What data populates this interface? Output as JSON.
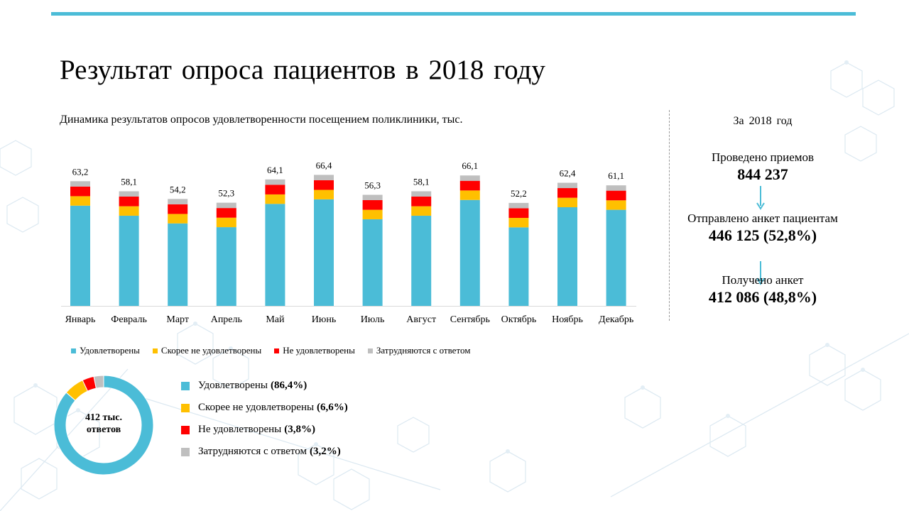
{
  "title": "Результат опроса пациентов в 2018 году",
  "colors": {
    "accent": "#4bbcd7",
    "satisfied": "#4bbcd7",
    "rather_not": "#ffc000",
    "not_satisfied": "#ff0000",
    "hard_to_say": "#bfbfbf"
  },
  "chart_data": [
    {
      "type": "bar",
      "stacked": true,
      "title": "Динамика результатов опросов удовлетворенности посещением поликлиники, тыс.",
      "categories": [
        "Январь",
        "Февраль",
        "Март",
        "Апрель",
        "Май",
        "Июнь",
        "Июль",
        "Август",
        "Сентябрь",
        "Октябрь",
        "Ноябрь",
        "Декабрь"
      ],
      "totals": [
        "63,2",
        "58,1",
        "54,2",
        "52,3",
        "64,1",
        "66,4",
        "56,3",
        "58,1",
        "66,1",
        "52,2",
        "62,4",
        "61,1"
      ],
      "series": [
        {
          "name": "Удовлетворены",
          "color": "#4bbcd7",
          "values": [
            50.8,
            45.7,
            41.8,
            39.9,
            51.7,
            54.0,
            43.9,
            45.7,
            53.7,
            39.8,
            50.0,
            48.7
          ]
        },
        {
          "name": "Скорее не удовлетворены",
          "color": "#ffc000",
          "values": [
            4.8,
            4.8,
            4.8,
            4.8,
            4.8,
            4.8,
            4.8,
            4.8,
            4.8,
            4.8,
            4.8,
            4.8
          ]
        },
        {
          "name": "Не удовлетворены",
          "color": "#ff0000",
          "values": [
            4.9,
            4.9,
            4.9,
            4.9,
            4.9,
            4.9,
            4.9,
            4.9,
            4.9,
            4.9,
            4.9,
            4.9
          ]
        },
        {
          "name": "Затрудняются с ответом",
          "color": "#bfbfbf",
          "values": [
            2.7,
            2.7,
            2.7,
            2.7,
            2.7,
            2.7,
            2.7,
            2.7,
            2.7,
            2.7,
            2.7,
            2.7
          ]
        }
      ],
      "ylim": [
        0,
        70
      ],
      "grid": false,
      "legend": "bottom"
    },
    {
      "type": "pie",
      "variant": "donut",
      "center_label": [
        "412 тыс.",
        "ответов"
      ],
      "slices": [
        {
          "name": "Удовлетворены",
          "percent_label": "(86,4%)",
          "value": 86.4,
          "color": "#4bbcd7"
        },
        {
          "name": "Скорее не удовлетворены",
          "percent_label": "(6,6%)",
          "value": 6.6,
          "color": "#ffc000"
        },
        {
          "name": "Не удовлетворены",
          "percent_label": "(3,8%)",
          "value": 3.8,
          "color": "#ff0000"
        },
        {
          "name": "Затрудняются с ответом",
          "percent_label": "(3,2%)",
          "value": 3.2,
          "color": "#bfbfbf"
        }
      ],
      "legend": "right"
    }
  ],
  "stats": {
    "period": "За 2018 год",
    "items": [
      {
        "label": "Проведено приемов",
        "value": "844 237"
      },
      {
        "label": "Отправлено анкет пациентам",
        "value": "446 125 (52,8%)"
      },
      {
        "label": "Получено анкет",
        "value": "412 086 (48,8%)"
      }
    ]
  }
}
